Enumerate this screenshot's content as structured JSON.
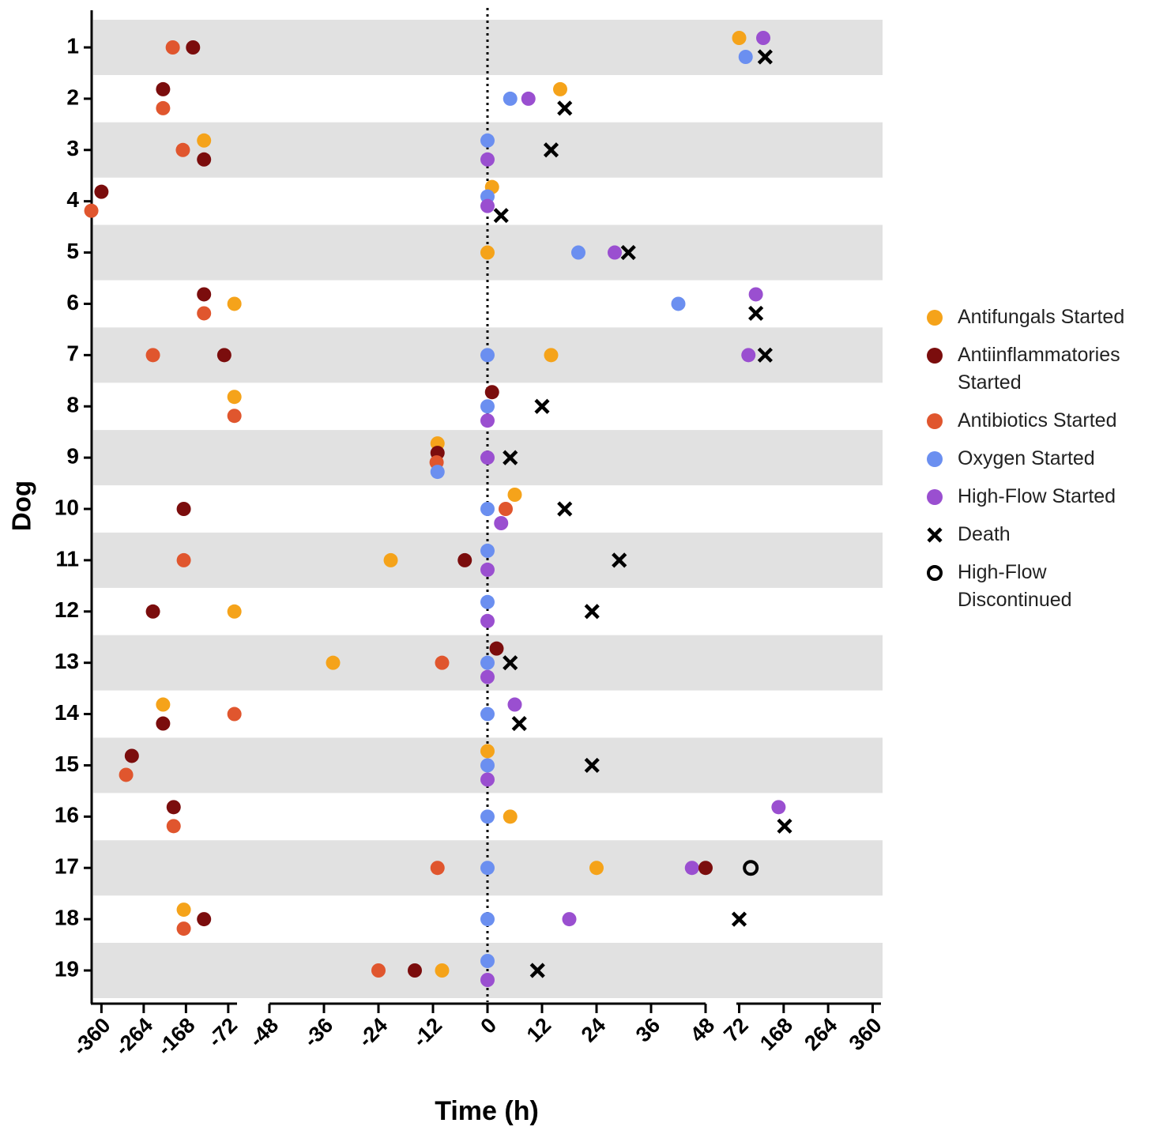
{
  "chart_data": {
    "type": "scatter",
    "y_label": "Dog",
    "x_label": "Time (h)",
    "categories": [
      "1",
      "2",
      "3",
      "4",
      "5",
      "6",
      "7",
      "8",
      "9",
      "10",
      "11",
      "12",
      "13",
      "14",
      "15",
      "16",
      "17",
      "18",
      "19"
    ],
    "x_segments": [
      {
        "xlim": [
          -384,
          -52
        ],
        "xticks": [
          -360,
          -264,
          -168,
          -72
        ]
      },
      {
        "xlim": [
          -48,
          48
        ],
        "xticks": [
          -48,
          -36,
          -24,
          -12,
          0,
          12,
          24,
          36,
          48
        ]
      },
      {
        "xlim": [
          66,
          378
        ],
        "xticks": [
          72,
          168,
          264,
          360
        ]
      }
    ],
    "vline": 0,
    "row_bands": true,
    "series": [
      {
        "name": "Antifungals Started",
        "color": "#f5a31a",
        "marker": "circle",
        "values": [
          72,
          16,
          -127,
          1,
          0,
          -58,
          14,
          -58,
          -11,
          6,
          -21.3,
          -58,
          -34,
          -220,
          0,
          5,
          24,
          -173,
          -10
        ]
      },
      {
        "name": "Antiinflammatories Started",
        "color": "#7b0d0d",
        "marker": "circle",
        "values": [
          -152,
          -220,
          -127,
          -360,
          null,
          -127,
          -81,
          1,
          -11,
          -173,
          -5,
          -243,
          2,
          -220,
          -291,
          -196,
          48,
          -127,
          -16
        ]
      },
      {
        "name": "Antibiotics Started",
        "color": "#e0562e",
        "marker": "circle",
        "values": [
          -198,
          -220,
          -175,
          -383,
          null,
          -127,
          -243,
          -58,
          -11.2,
          4,
          -173,
          null,
          -10,
          -58,
          -304,
          -196,
          -11,
          -173,
          -24
        ]
      },
      {
        "name": "Oxygen Started",
        "color": "#6b8ff0",
        "marker": "circle",
        "values": [
          86,
          5,
          0,
          0,
          20,
          42,
          0,
          0,
          -11,
          0,
          0,
          0,
          0,
          0,
          0,
          0,
          0,
          0,
          0
        ]
      },
      {
        "name": "High-Flow Started",
        "color": "#9a4fd0",
        "marker": "circle",
        "values": [
          124,
          9,
          0,
          0,
          28,
          108,
          92,
          0,
          0,
          3,
          0,
          0,
          0,
          6,
          0,
          157,
          45,
          18,
          0
        ]
      },
      {
        "name": "Death",
        "color": "#000000",
        "marker": "x",
        "values": [
          128,
          17,
          14,
          3,
          31,
          108,
          128,
          12,
          5,
          17,
          29,
          23,
          5,
          7,
          23,
          170,
          null,
          72,
          11
        ]
      },
      {
        "name": "High-Flow Discontinued",
        "color": "#000000",
        "marker": "open-circle",
        "values": [
          null,
          null,
          null,
          null,
          null,
          null,
          null,
          null,
          null,
          null,
          null,
          null,
          null,
          null,
          null,
          null,
          97,
          null,
          null
        ]
      }
    ]
  }
}
